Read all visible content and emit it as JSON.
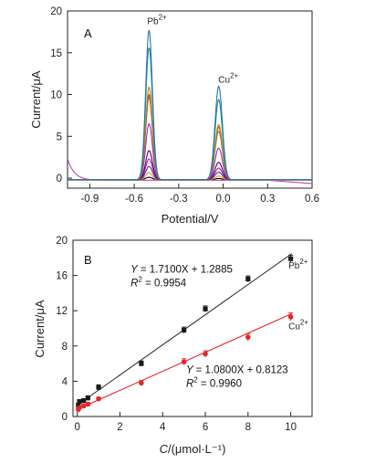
{
  "chart_data": [
    {
      "type": "line",
      "panel_label": "A",
      "xlabel": "Potential/V",
      "ylabel": "Current/μA",
      "xlim": [
        -1.05,
        0.6
      ],
      "ylim": [
        -1.2,
        20
      ],
      "xticks": [
        "-0.9",
        "-0.6",
        "-0.3",
        "0.0",
        "0.3",
        "0.6"
      ],
      "yticks": [
        "0",
        "5",
        "10",
        "15",
        "20"
      ],
      "annotations": [
        {
          "label": "Pb",
          "sup": "2+",
          "x": -0.5,
          "y": 18.4
        },
        {
          "label": "Cu",
          "sup": "2+",
          "x": -0.02,
          "y": 11.4
        }
      ],
      "peak_potentials": {
        "Pb": -0.5,
        "Cu": -0.03
      },
      "series": [
        {
          "color": "#000000",
          "peak_pb": 0.3,
          "peak_cu": 0.15,
          "baseline": -0.2
        },
        {
          "color": "#d4a017",
          "peak_pb": 0.9,
          "peak_cu": 0.5,
          "baseline": -0.25
        },
        {
          "color": "#3a3aa0",
          "peak_pb": 1.6,
          "peak_cu": 0.9,
          "baseline": -0.2
        },
        {
          "color": "#c71585",
          "peak_pb": 2.5,
          "peak_cu": 1.4,
          "baseline": -0.2
        },
        {
          "color": "#4b0082",
          "peak_pb": 3.5,
          "peak_cu": 2.1,
          "baseline": -0.2
        },
        {
          "color": "#9932cc",
          "peak_pb": 6.7,
          "peak_cu": 3.8,
          "baseline": -0.2
        },
        {
          "color": "#6b8e23",
          "peak_pb": 9.9,
          "peak_cu": 5.8,
          "baseline": -0.2
        },
        {
          "color": "#e03030",
          "peak_pb": 10.2,
          "peak_cu": 6.3,
          "baseline": -0.2
        },
        {
          "color": "#b8860b",
          "peak_pb": 11.1,
          "peak_cu": 6.6,
          "baseline": -0.2
        },
        {
          "color": "#228b8b",
          "peak_pb": 15.8,
          "peak_cu": 9.6,
          "baseline": -0.2
        },
        {
          "color": "#1f77b4",
          "peak_pb": 17.9,
          "peak_cu": 11.2,
          "baseline": -0.2
        }
      ],
      "background_trace_color": "#c040c0"
    },
    {
      "type": "scatter",
      "panel_label": "B",
      "xlabel_italic": "C",
      "xlabel_rest": "/(μmol·L⁻¹)",
      "ylabel": "Current/μA",
      "xlim": [
        -0.2,
        11
      ],
      "ylim": [
        0,
        20
      ],
      "xticks": [
        "0",
        "2",
        "4",
        "6",
        "8",
        "10"
      ],
      "yticks": [
        "0",
        "4",
        "8",
        "12",
        "16",
        "20"
      ],
      "series": [
        {
          "name": "Pb",
          "name_sup": "2+",
          "color": "#1a1a1a",
          "line_color": "#333333",
          "x": [
            0.05,
            0.1,
            0.3,
            0.5,
            1,
            3,
            5,
            6,
            8,
            10
          ],
          "y": [
            1.3,
            1.7,
            1.8,
            2.1,
            3.3,
            6.0,
            9.8,
            12.2,
            15.6,
            17.9
          ],
          "err": [
            0.2,
            0.2,
            0.2,
            0.25,
            0.3,
            0.3,
            0.35,
            0.35,
            0.35,
            0.4
          ],
          "fit": {
            "slope": 1.71,
            "intercept": 1.2885
          },
          "equation": "= 1.7100X + 1.2885",
          "r2": "= 0.9954"
        },
        {
          "name": "Cu",
          "name_sup": "2+",
          "color": "#e8242b",
          "line_color": "#e8242b",
          "x": [
            0.05,
            0.1,
            0.3,
            0.5,
            1,
            3,
            5,
            6,
            8,
            10
          ],
          "y": [
            0.8,
            1.0,
            1.2,
            1.4,
            2.0,
            3.8,
            6.2,
            7.1,
            9.0,
            11.3
          ],
          "err": [
            0.15,
            0.15,
            0.15,
            0.2,
            0.2,
            0.3,
            0.35,
            0.35,
            0.4,
            0.45
          ],
          "fit": {
            "slope": 1.08,
            "intercept": 0.8123
          },
          "equation": "= 1.0800X + 0.8123",
          "r2": "= 0.9960"
        }
      ]
    }
  ]
}
